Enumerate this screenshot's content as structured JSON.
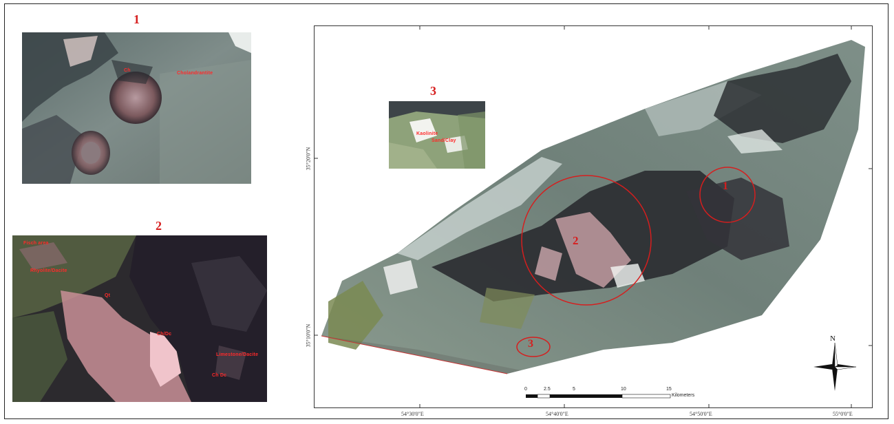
{
  "inset1": {
    "number": "1",
    "labels": {
      "a": "Ch",
      "b": "Cholandrantite"
    }
  },
  "inset2": {
    "number": "2",
    "labels": {
      "a": "Fisch area",
      "b": "Rhyolite/Dacite",
      "c": "Qt",
      "d": "Ch/Dc",
      "e": "Limestone/Dacite",
      "f": "Ch Dc"
    }
  },
  "inset3": {
    "number": "3",
    "labels": {
      "a": "Kaolinite",
      "b": "Sand/Clay"
    }
  },
  "main_map": {
    "zone_labels": {
      "zone2": "2",
      "zone3": "3",
      "zone1": "1"
    },
    "x_ticks": [
      "54°30'0\"E",
      "54°40'0\"E",
      "54°50'0\"E",
      "55°0'0\"E"
    ],
    "y_ticks": [
      "35°20'0\"N",
      "35°10'0\"N"
    ],
    "north_label": "N",
    "scale": {
      "ticks": [
        "0",
        "2.5",
        "5",
        "10",
        "15"
      ],
      "unit": "Kilometers"
    },
    "colors": {
      "annotation": "#d61e1e"
    }
  }
}
